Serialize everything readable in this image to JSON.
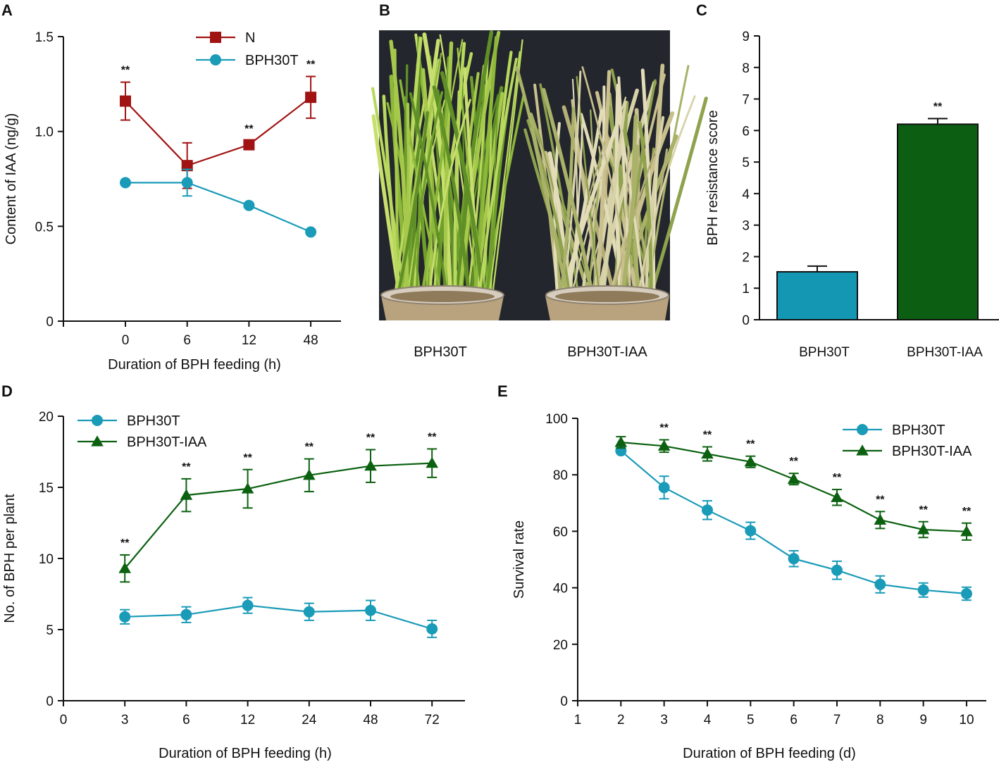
{
  "colors": {
    "red": "#A11313",
    "blue": "#1A9BB8",
    "green": "#0B6110",
    "bar_blue": "#1497B3",
    "bar_green": "#0B5E12",
    "photo_bg": "#23262C"
  },
  "panel_labels": {
    "A": "A",
    "B": "B",
    "C": "C",
    "D": "D",
    "E": "E"
  },
  "photo": {
    "left_label": "BPH30T",
    "right_label": "BPH30T-IAA"
  },
  "chart_data": [
    {
      "id": "A",
      "type": "line",
      "title": "",
      "xlabel": "Duration of BPH feeding (h)",
      "ylabel": "Content of IAA (ng/g)",
      "ylim": [
        0,
        1.5
      ],
      "yticks": [
        0,
        0.5,
        1.0,
        1.5
      ],
      "ytick_labels": [
        "0",
        "0.5",
        "1.0",
        "1.5"
      ],
      "categories": [
        "0",
        "6",
        "12",
        "48"
      ],
      "legend_position": "top-right",
      "series": [
        {
          "name": "N",
          "marker": "square",
          "color": "#A11313",
          "values": [
            1.16,
            0.82,
            0.93,
            1.18
          ],
          "errors": [
            0.1,
            0.12,
            0.02,
            0.11
          ]
        },
        {
          "name": "BPH30T",
          "marker": "circle",
          "color": "#1A9BB8",
          "values": [
            0.73,
            0.73,
            0.61,
            0.47
          ],
          "errors": [
            0.0,
            0.07,
            0.0,
            0.0
          ]
        }
      ],
      "significance": [
        "**",
        "",
        "**",
        "**"
      ]
    },
    {
      "id": "C",
      "type": "bar",
      "title": "",
      "xlabel": "",
      "ylabel": "BPH resistance score",
      "ylim": [
        0,
        9
      ],
      "yticks": [
        0,
        1,
        2,
        3,
        4,
        5,
        6,
        7,
        8,
        9
      ],
      "ytick_labels": [
        "0",
        "1",
        "2",
        "3",
        "4",
        "5",
        "6",
        "7",
        "8",
        "9"
      ],
      "categories": [
        "BPH30T",
        "BPH30T-IAA"
      ],
      "values": [
        1.52,
        6.2
      ],
      "errors": [
        0.18,
        0.18
      ],
      "significance": [
        "",
        "**"
      ]
    },
    {
      "id": "D",
      "type": "line",
      "title": "",
      "xlabel": "Duration of BPH feeding (h)",
      "ylabel": "No. of BPH per plant",
      "ylim": [
        0,
        20
      ],
      "yticks": [
        0,
        5,
        10,
        15,
        20
      ],
      "ytick_labels": [
        "0",
        "5",
        "10",
        "15",
        "20"
      ],
      "categories": [
        "0",
        "3",
        "6",
        "12",
        "24",
        "48",
        "72"
      ],
      "legend_position": "top-left",
      "series": [
        {
          "name": "BPH30T",
          "marker": "circle",
          "color": "#1A9BB8",
          "values": [
            null,
            5.9,
            6.05,
            6.7,
            6.25,
            6.35,
            5.05
          ],
          "errors": [
            null,
            0.5,
            0.55,
            0.55,
            0.6,
            0.7,
            0.6
          ]
        },
        {
          "name": "BPH30T-IAA",
          "marker": "triangle",
          "color": "#0B6110",
          "values": [
            null,
            9.3,
            14.45,
            14.9,
            15.85,
            16.5,
            16.7
          ],
          "errors": [
            null,
            0.95,
            1.15,
            1.35,
            1.15,
            1.15,
            1.0
          ]
        }
      ],
      "significance": [
        "",
        "**",
        "**",
        "**",
        "**",
        "**",
        "**"
      ]
    },
    {
      "id": "E",
      "type": "line",
      "title": "",
      "xlabel": "Duration of BPH feeding (d)",
      "ylabel": "Survival rate",
      "ylim": [
        0,
        100
      ],
      "yticks": [
        0,
        20,
        40,
        60,
        80,
        100
      ],
      "ytick_labels": [
        "0",
        "20",
        "40",
        "60",
        "80",
        "100"
      ],
      "categories": [
        "1",
        "2",
        "3",
        "4",
        "5",
        "6",
        "7",
        "8",
        "9",
        "10"
      ],
      "legend_position": "top-right",
      "series": [
        {
          "name": "BPH30T",
          "marker": "circle",
          "color": "#1A9BB8",
          "values": [
            null,
            88.5,
            75.5,
            67.5,
            60.2,
            50.3,
            46.2,
            41.2,
            39.2,
            37.9
          ],
          "errors": [
            null,
            0,
            4,
            3.3,
            3,
            2.8,
            3.2,
            3,
            2.5,
            2.3
          ]
        },
        {
          "name": "BPH30T-IAA",
          "marker": "triangle",
          "color": "#0B6110",
          "values": [
            null,
            91.5,
            90.2,
            87.4,
            84.6,
            78.5,
            72.0,
            64.0,
            60.6,
            59.9
          ],
          "errors": [
            null,
            2,
            2.2,
            2.5,
            2,
            2,
            2.8,
            3,
            2.8,
            3
          ]
        }
      ],
      "significance": [
        "",
        "",
        "**",
        "**",
        "**",
        "**",
        "**",
        "**",
        "**",
        "**"
      ]
    }
  ]
}
